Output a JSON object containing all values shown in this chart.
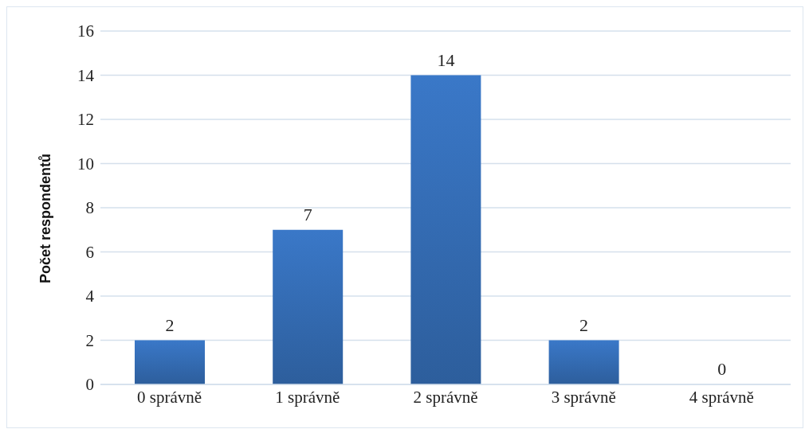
{
  "chart_data": {
    "type": "bar",
    "ylabel": "Počet respondentů",
    "categories": [
      "0 správně",
      "1 správně",
      "2 správně",
      "3 správně",
      "4 správně"
    ],
    "values": [
      2,
      7,
      14,
      2,
      0
    ],
    "color": "#3a78c8",
    "ylim": [
      0,
      16
    ],
    "yticks": [
      0,
      2,
      4,
      6,
      8,
      10,
      12,
      14,
      16
    ],
    "grid": "y",
    "data_labels": true
  }
}
